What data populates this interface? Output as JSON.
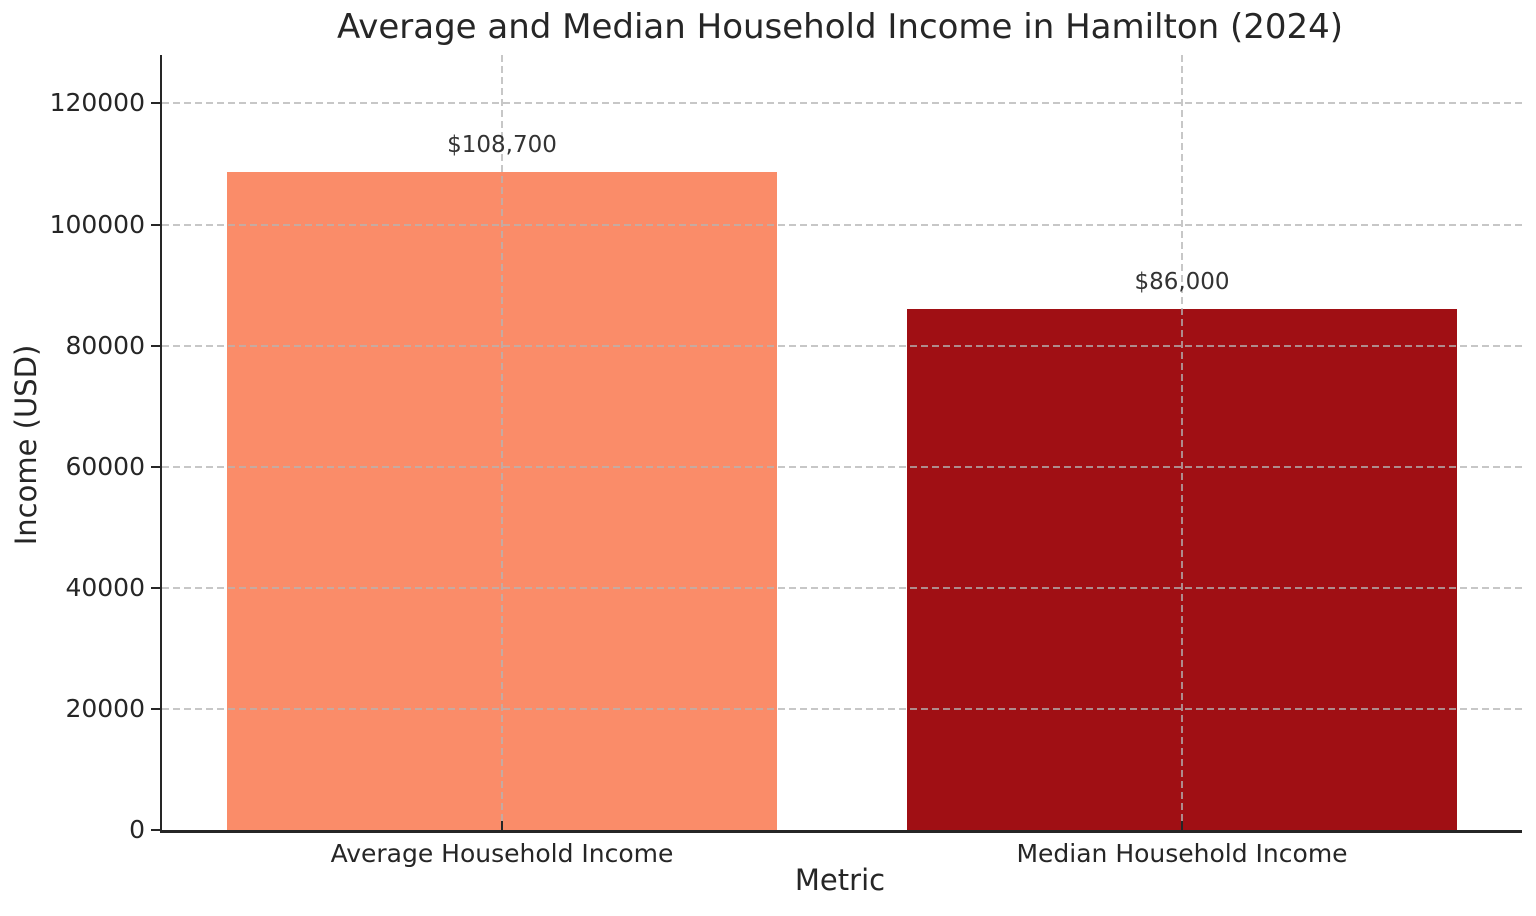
{
  "chart_data": {
    "type": "bar",
    "title": "Average and Median Household Income in Hamilton (2024)",
    "xlabel": "Metric",
    "ylabel": "Income (USD)",
    "categories": [
      "Average Household Income",
      "Median Household Income"
    ],
    "values": [
      108700,
      86000
    ],
    "value_labels": [
      "$108,700",
      "$86,000"
    ],
    "bar_colors": [
      "#FA8C69",
      "#A00F14"
    ],
    "yticks": [
      0,
      20000,
      40000,
      60000,
      80000,
      100000,
      120000
    ],
    "ylim": [
      0,
      128000
    ],
    "bar_width_fraction": 0.404,
    "grid": {
      "visible": true,
      "style": "dashed",
      "color": "rgba(180,180,180,0.75)",
      "drawn_over_bars": true
    },
    "legend": "none",
    "colors": {
      "spine": "#262626",
      "text": "#262626",
      "value_label_text": "#333333",
      "background": "#ffffff"
    }
  }
}
